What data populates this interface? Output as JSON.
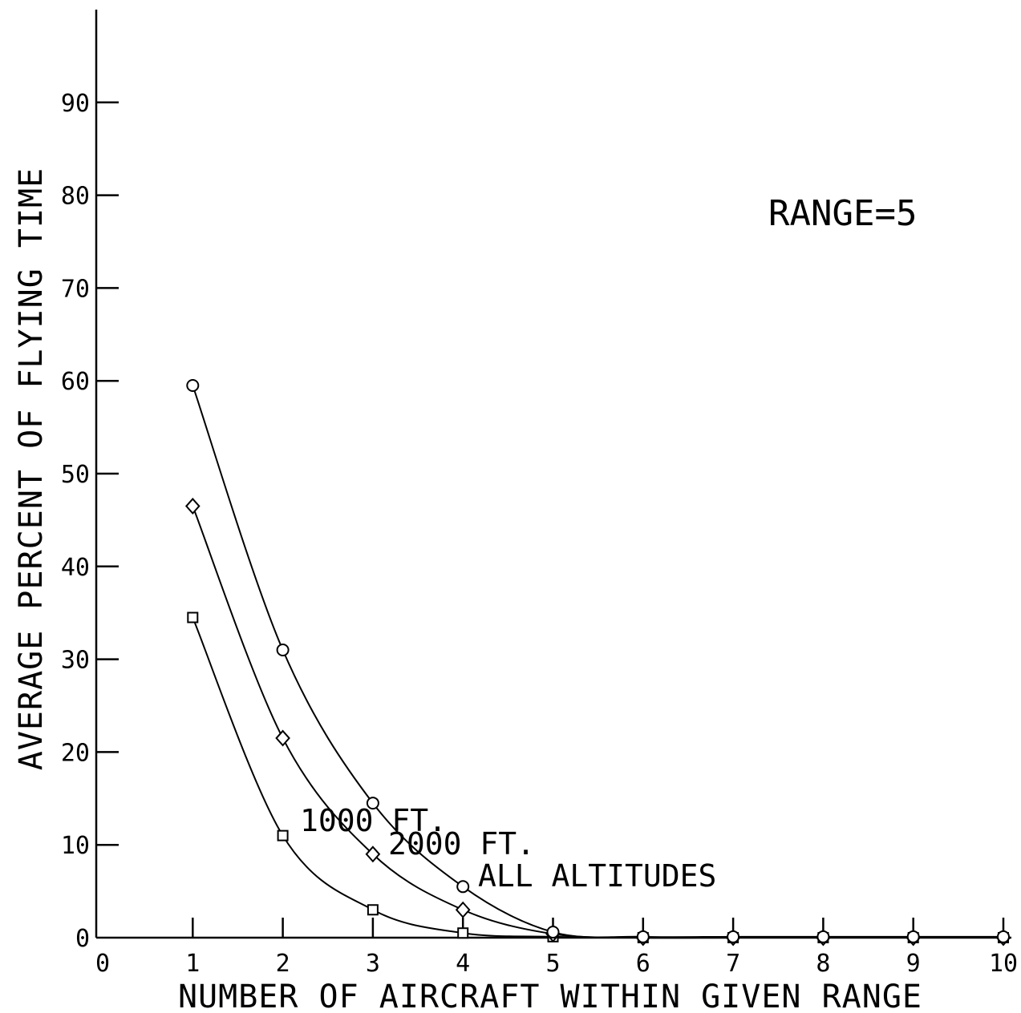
{
  "chart_data": {
    "type": "line",
    "title": "",
    "xlabel": "NUMBER OF AIRCRAFT WITHIN GIVEN RANGE",
    "ylabel": "AVERAGE PERCENT OF FLYING TIME",
    "xlim": [
      0,
      10
    ],
    "ylim": [
      0,
      100
    ],
    "x_ticks": [
      "0",
      "1",
      "2",
      "3",
      "4",
      "5",
      "6",
      "7",
      "8",
      "9",
      "10"
    ],
    "y_ticks": [
      "0",
      "10",
      "20",
      "30",
      "40",
      "50",
      "60",
      "70",
      "80",
      "90"
    ],
    "grid": false,
    "annotation": "RANGE=5",
    "x": [
      1,
      2,
      3,
      4,
      5,
      6,
      7,
      8,
      9,
      10
    ],
    "series": [
      {
        "name": "1000 FT.",
        "marker": "square",
        "values": [
          34.5,
          11.0,
          3.0,
          0.5,
          0.1,
          0.0,
          0.0,
          0.0,
          0.0,
          0.0
        ]
      },
      {
        "name": "2000 FT.",
        "marker": "diamond",
        "values": [
          46.5,
          21.5,
          9.0,
          3.0,
          0.4,
          0.0,
          0.0,
          0.0,
          0.0,
          0.0
        ]
      },
      {
        "name": "ALL ALTITUDES",
        "marker": "circle",
        "values": [
          59.5,
          31.0,
          14.5,
          5.5,
          0.6,
          0.1,
          0.1,
          0.1,
          0.1,
          0.1
        ]
      }
    ]
  }
}
